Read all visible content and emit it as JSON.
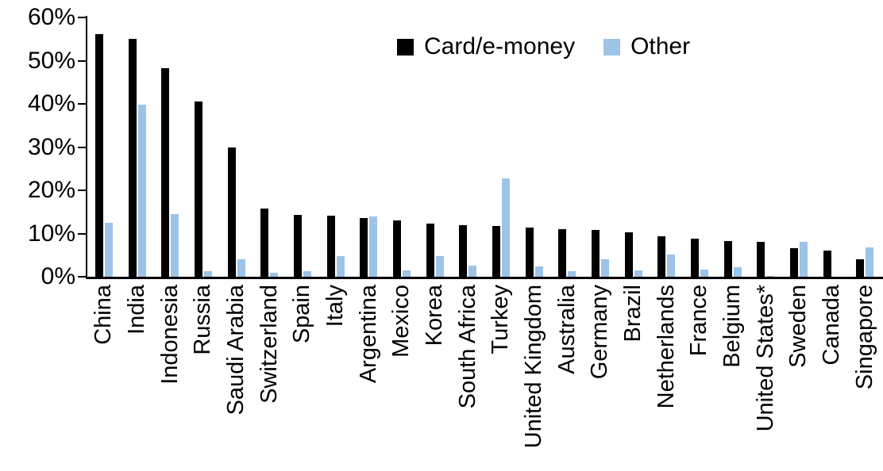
{
  "chart_data": {
    "type": "bar",
    "title": "",
    "xlabel": "",
    "ylabel": "",
    "ylim": [
      0,
      60
    ],
    "grid": false,
    "legend_position": "top-center",
    "ytick_values": [
      60,
      50,
      40,
      30,
      20,
      10,
      0
    ],
    "ytick_labels": [
      "60%",
      "50%",
      "40%",
      "30%",
      "20%",
      "10%",
      "0%"
    ],
    "categories": [
      "China",
      "India",
      "Indonesia",
      "Russia",
      "Saudi Arabia",
      "Switzerland",
      "Spain",
      "Italy",
      "Argentina",
      "Mexico",
      "Korea",
      "South Africa",
      "Turkey",
      "United Kingdom",
      "Australia",
      "Germany",
      "Brazil",
      "Netherlands",
      "France",
      "Belgium",
      "United States*",
      "Sweden",
      "Canada",
      "Singapore"
    ],
    "series": [
      {
        "name": "Card/e-money",
        "color": "#000000",
        "values": [
          56.2,
          55.0,
          48.2,
          40.5,
          29.9,
          15.7,
          14.3,
          14.1,
          13.6,
          13.1,
          12.3,
          11.9,
          11.8,
          11.3,
          11.0,
          10.8,
          10.2,
          9.4,
          8.8,
          8.3,
          8.1,
          6.7,
          6.1,
          4.0
        ]
      },
      {
        "name": "Other",
        "color": "#9DC3E6",
        "values": [
          12.4,
          39.8,
          14.5,
          1.2,
          4.1,
          1.0,
          1.2,
          4.8,
          14.0,
          1.5,
          4.7,
          2.5,
          22.7,
          2.4,
          1.2,
          4.1,
          1.5,
          5.1,
          1.6,
          2.2,
          0.2,
          8.1,
          0,
          6.8
        ]
      }
    ]
  }
}
